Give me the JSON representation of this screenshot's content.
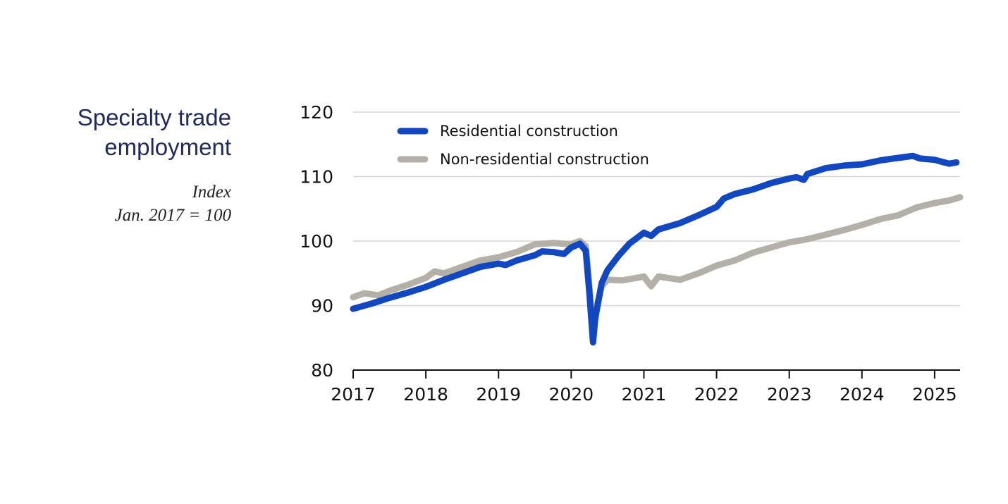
{
  "title": {
    "line1": "Specialty trade",
    "line2": "employment"
  },
  "subtitle": {
    "line1": "Index",
    "line2": "Jan. 2017 = 100"
  },
  "colors": {
    "residential": "#1147c0",
    "non_residential": "#b5b0a7",
    "grid": "#d6d6d6",
    "axis": "#111111",
    "title": "#1f2a5c"
  },
  "chart_data": {
    "type": "line",
    "title": "Specialty trade employment",
    "ylabel": "Index Jan. 2017 = 100",
    "xlabel": "",
    "ylim": [
      80,
      120
    ],
    "xlim": [
      2017,
      2025.35
    ],
    "y_ticks": [
      80,
      90,
      100,
      110,
      120
    ],
    "x_ticks": [
      2017,
      2018,
      2019,
      2020,
      2021,
      2022,
      2023,
      2024,
      2025
    ],
    "grid": true,
    "legend_position": "top-left",
    "series": [
      {
        "name": "Residential construction",
        "color_key": "residential",
        "points": [
          [
            2017.0,
            89.5
          ],
          [
            2017.25,
            90.3
          ],
          [
            2017.5,
            91.2
          ],
          [
            2017.75,
            92.0
          ],
          [
            2018.0,
            92.9
          ],
          [
            2018.25,
            94.0
          ],
          [
            2018.5,
            95.0
          ],
          [
            2018.75,
            96.0
          ],
          [
            2019.0,
            96.5
          ],
          [
            2019.1,
            96.3
          ],
          [
            2019.25,
            97.0
          ],
          [
            2019.5,
            97.8
          ],
          [
            2019.6,
            98.4
          ],
          [
            2019.75,
            98.3
          ],
          [
            2019.9,
            98.0
          ],
          [
            2020.0,
            99.0
          ],
          [
            2020.12,
            99.6
          ],
          [
            2020.2,
            98.5
          ],
          [
            2020.25,
            92.0
          ],
          [
            2020.3,
            84.3
          ],
          [
            2020.33,
            88.0
          ],
          [
            2020.42,
            93.5
          ],
          [
            2020.5,
            95.5
          ],
          [
            2020.65,
            97.7
          ],
          [
            2020.8,
            99.6
          ],
          [
            2021.0,
            101.3
          ],
          [
            2021.1,
            100.8
          ],
          [
            2021.2,
            101.8
          ],
          [
            2021.5,
            102.8
          ],
          [
            2021.75,
            104.0
          ],
          [
            2022.0,
            105.3
          ],
          [
            2022.1,
            106.6
          ],
          [
            2022.25,
            107.3
          ],
          [
            2022.5,
            108.0
          ],
          [
            2022.75,
            109.0
          ],
          [
            2023.0,
            109.7
          ],
          [
            2023.1,
            109.9
          ],
          [
            2023.2,
            109.5
          ],
          [
            2023.25,
            110.4
          ],
          [
            2023.5,
            111.3
          ],
          [
            2023.75,
            111.7
          ],
          [
            2024.0,
            111.9
          ],
          [
            2024.25,
            112.5
          ],
          [
            2024.5,
            112.9
          ],
          [
            2024.7,
            113.2
          ],
          [
            2024.8,
            112.8
          ],
          [
            2025.0,
            112.6
          ],
          [
            2025.1,
            112.3
          ],
          [
            2025.2,
            112.0
          ],
          [
            2025.3,
            112.2
          ]
        ]
      },
      {
        "name": "Non-residential construction",
        "color_key": "non_residential",
        "points": [
          [
            2017.0,
            91.3
          ],
          [
            2017.15,
            91.9
          ],
          [
            2017.35,
            91.6
          ],
          [
            2017.5,
            92.3
          ],
          [
            2017.75,
            93.2
          ],
          [
            2018.0,
            94.3
          ],
          [
            2018.12,
            95.3
          ],
          [
            2018.25,
            95.0
          ],
          [
            2018.5,
            96.0
          ],
          [
            2018.75,
            97.0
          ],
          [
            2019.0,
            97.5
          ],
          [
            2019.25,
            98.3
          ],
          [
            2019.5,
            99.5
          ],
          [
            2019.75,
            99.7
          ],
          [
            2020.0,
            99.5
          ],
          [
            2020.12,
            100.0
          ],
          [
            2020.2,
            99.2
          ],
          [
            2020.25,
            93.0
          ],
          [
            2020.3,
            85.3
          ],
          [
            2020.33,
            89.0
          ],
          [
            2020.42,
            93.0
          ],
          [
            2020.5,
            94.0
          ],
          [
            2020.7,
            93.9
          ],
          [
            2020.9,
            94.3
          ],
          [
            2021.0,
            94.5
          ],
          [
            2021.1,
            93.0
          ],
          [
            2021.2,
            94.5
          ],
          [
            2021.5,
            94.0
          ],
          [
            2021.75,
            95.0
          ],
          [
            2022.0,
            96.2
          ],
          [
            2022.25,
            97.0
          ],
          [
            2022.5,
            98.2
          ],
          [
            2022.75,
            99.0
          ],
          [
            2023.0,
            99.8
          ],
          [
            2023.25,
            100.3
          ],
          [
            2023.5,
            101.0
          ],
          [
            2023.75,
            101.7
          ],
          [
            2024.0,
            102.5
          ],
          [
            2024.25,
            103.4
          ],
          [
            2024.5,
            104.0
          ],
          [
            2024.75,
            105.2
          ],
          [
            2025.0,
            105.9
          ],
          [
            2025.2,
            106.3
          ],
          [
            2025.35,
            106.8
          ]
        ]
      }
    ]
  }
}
